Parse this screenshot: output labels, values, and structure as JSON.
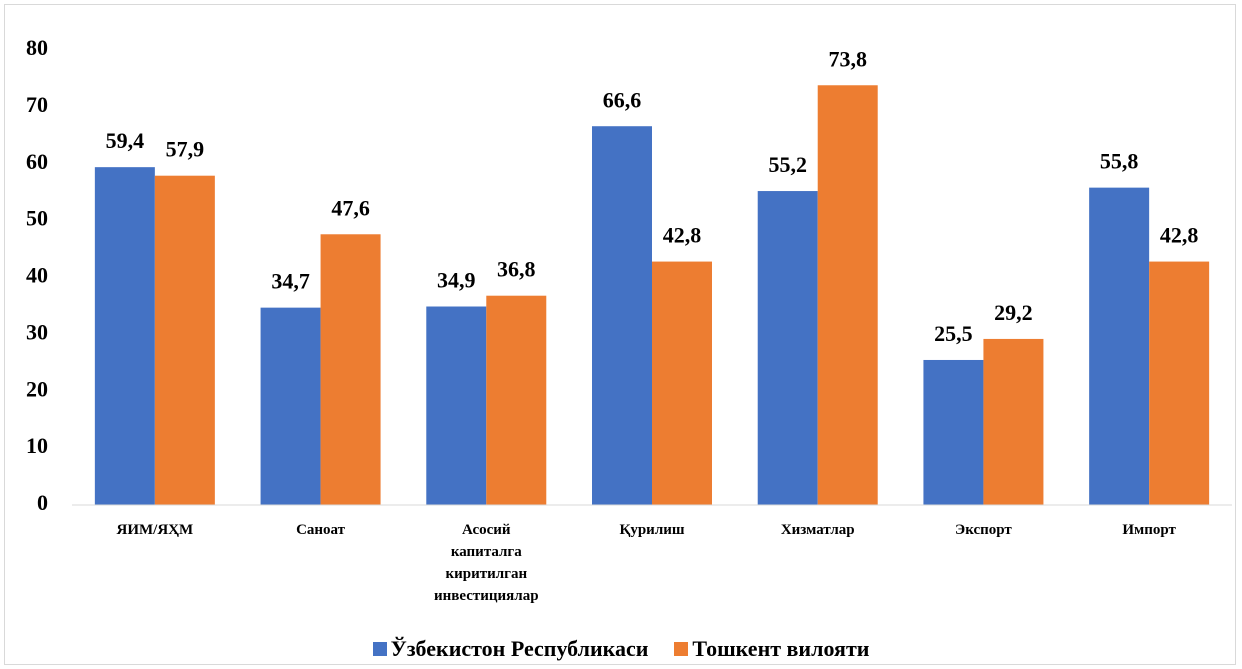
{
  "chart_data": {
    "type": "bar",
    "categories": [
      "ЯИМ/ЯҲМ",
      "Саноат",
      "Асосий капиталга киритилган инвестициялар",
      "Қурилиш",
      "Хизматлар",
      "Экспорт",
      "Импорт"
    ],
    "series": [
      {
        "name": "Ўзбекистон Республикаси",
        "color": "#4472c4",
        "values": [
          59.4,
          34.7,
          34.9,
          66.6,
          55.2,
          25.5,
          55.8
        ],
        "value_labels": [
          "59,4",
          "34,7",
          "34,9",
          "66,6",
          "55,2",
          "25,5",
          "55,8"
        ]
      },
      {
        "name": "Тошкент вилояти",
        "color": "#ed7d31",
        "values": [
          57.9,
          47.6,
          36.8,
          42.8,
          73.8,
          29.2,
          42.8
        ],
        "value_labels": [
          "57,9",
          "47,6",
          "36,8",
          "42,8",
          "73,8",
          "29,2",
          "42,8"
        ]
      }
    ],
    "ylim": [
      0,
      80
    ],
    "yticks": [
      0,
      10,
      20,
      30,
      40,
      50,
      60,
      70,
      80
    ],
    "grid": false,
    "legend": "bottom"
  }
}
